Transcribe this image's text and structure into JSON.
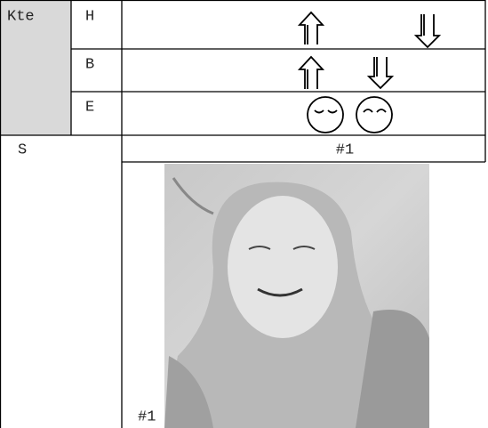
{
  "table": {
    "header": "Kte",
    "rows": [
      {
        "label": "H"
      },
      {
        "label": "B"
      },
      {
        "label": "E"
      }
    ],
    "section": "S",
    "caption": "#1",
    "image_label": "#1"
  }
}
